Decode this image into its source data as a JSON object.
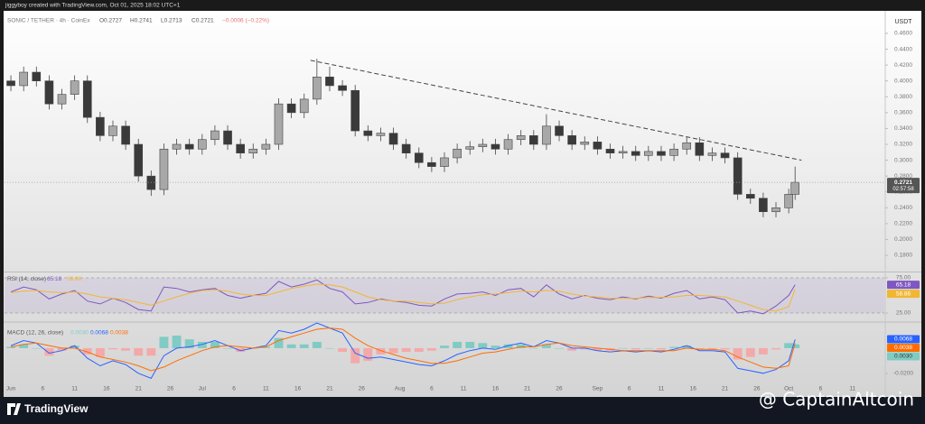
{
  "header": {
    "credit": "jiggyboy created with TradingView.com, Oct 01, 2025 18:02 UTC+1",
    "ohlc": [
      "O0.2727",
      "H0.2741",
      "L0.2713",
      "C0.2721",
      "−0.0006 (−0.22%)"
    ]
  },
  "footer": {
    "logo": "TradingView",
    "watermark": "@ CaptainAltcoin"
  },
  "chart_data": [
    {
      "type": "candlestick",
      "title": "SONIC / TETHER · 4h · CoinEx",
      "ylabel": "USDT",
      "countdown": "02:57:58",
      "x": [
        0,
        2,
        4,
        6,
        8,
        10,
        12,
        14,
        16,
        18,
        20,
        22,
        24,
        26,
        28,
        30,
        32,
        34,
        36,
        38,
        40,
        42,
        44,
        46,
        48,
        50,
        52,
        54,
        56,
        58,
        60,
        62,
        64,
        66,
        68,
        70,
        72,
        74,
        76,
        78,
        80,
        82,
        84,
        86,
        88,
        90,
        92,
        94,
        96,
        98,
        100,
        102,
        104,
        106,
        108,
        110,
        112,
        114,
        116,
        118,
        120,
        122,
        123
      ],
      "open": [
        0.4,
        0.394,
        0.411,
        0.4,
        0.371,
        0.383,
        0.4,
        0.354,
        0.331,
        0.343,
        0.32,
        0.28,
        0.263,
        0.314,
        0.32,
        0.314,
        0.326,
        0.337,
        0.32,
        0.309,
        0.314,
        0.32,
        0.371,
        0.36,
        0.377,
        0.405,
        0.394,
        0.388,
        0.337,
        0.331,
        0.334,
        0.32,
        0.309,
        0.297,
        0.292,
        0.303,
        0.314,
        0.317,
        0.32,
        0.314,
        0.326,
        0.331,
        0.32,
        0.343,
        0.331,
        0.32,
        0.323,
        0.314,
        0.309,
        0.311,
        0.306,
        0.311,
        0.306,
        0.314,
        0.322,
        0.306,
        0.309,
        0.303,
        0.257,
        0.252,
        0.235,
        0.24,
        0.257
      ],
      "high": [
        0.407,
        0.418,
        0.418,
        0.407,
        0.39,
        0.407,
        0.407,
        0.361,
        0.35,
        0.35,
        0.327,
        0.287,
        0.321,
        0.327,
        0.327,
        0.333,
        0.344,
        0.344,
        0.327,
        0.321,
        0.327,
        0.378,
        0.378,
        0.384,
        0.428,
        0.418,
        0.401,
        0.395,
        0.344,
        0.341,
        0.341,
        0.327,
        0.316,
        0.304,
        0.31,
        0.321,
        0.324,
        0.327,
        0.327,
        0.333,
        0.338,
        0.338,
        0.358,
        0.35,
        0.338,
        0.33,
        0.33,
        0.321,
        0.318,
        0.318,
        0.318,
        0.318,
        0.321,
        0.329,
        0.329,
        0.316,
        0.316,
        0.31,
        0.264,
        0.259,
        0.247,
        0.264,
        0.292
      ],
      "low": [
        0.387,
        0.387,
        0.393,
        0.364,
        0.364,
        0.376,
        0.347,
        0.324,
        0.324,
        0.313,
        0.273,
        0.255,
        0.256,
        0.307,
        0.307,
        0.307,
        0.319,
        0.313,
        0.302,
        0.302,
        0.307,
        0.313,
        0.353,
        0.353,
        0.37,
        0.387,
        0.381,
        0.33,
        0.324,
        0.324,
        0.313,
        0.302,
        0.29,
        0.285,
        0.285,
        0.296,
        0.307,
        0.31,
        0.307,
        0.307,
        0.319,
        0.313,
        0.313,
        0.324,
        0.313,
        0.313,
        0.307,
        0.302,
        0.302,
        0.299,
        0.299,
        0.299,
        0.299,
        0.307,
        0.299,
        0.299,
        0.296,
        0.25,
        0.245,
        0.228,
        0.228,
        0.233,
        0.25
      ],
      "close": [
        0.394,
        0.411,
        0.4,
        0.371,
        0.383,
        0.4,
        0.354,
        0.331,
        0.343,
        0.32,
        0.28,
        0.263,
        0.314,
        0.32,
        0.314,
        0.326,
        0.337,
        0.32,
        0.309,
        0.314,
        0.32,
        0.371,
        0.36,
        0.377,
        0.405,
        0.394,
        0.388,
        0.337,
        0.331,
        0.334,
        0.32,
        0.309,
        0.297,
        0.292,
        0.303,
        0.314,
        0.317,
        0.32,
        0.314,
        0.326,
        0.331,
        0.32,
        0.343,
        0.331,
        0.32,
        0.323,
        0.314,
        0.309,
        0.311,
        0.306,
        0.311,
        0.306,
        0.314,
        0.322,
        0.306,
        0.309,
        0.303,
        0.257,
        0.252,
        0.235,
        0.24,
        0.257,
        0.2721
      ],
      "up_color": "#a8a8a8",
      "down_color": "#3a3a3a",
      "trendline": {
        "x": [
          47,
          124
        ],
        "values": [
          0.426,
          0.3
        ]
      },
      "xlim": [
        -1,
        137
      ],
      "xticks": [
        {
          "value": 0,
          "label": "Jun"
        },
        {
          "value": 5,
          "label": "6"
        },
        {
          "value": 10,
          "label": "11"
        },
        {
          "value": 15,
          "label": "16"
        },
        {
          "value": 20,
          "label": "21"
        },
        {
          "value": 25,
          "label": "26"
        },
        {
          "value": 30,
          "label": "Jul"
        },
        {
          "value": 35,
          "label": "6"
        },
        {
          "value": 40,
          "label": "11"
        },
        {
          "value": 45,
          "label": "16"
        },
        {
          "value": 50,
          "label": "21"
        },
        {
          "value": 55,
          "label": "26"
        },
        {
          "value": 61,
          "label": "Aug"
        },
        {
          "value": 66,
          "label": "6"
        },
        {
          "value": 71,
          "label": "11"
        },
        {
          "value": 76,
          "label": "16"
        },
        {
          "value": 81,
          "label": "21"
        },
        {
          "value": 86,
          "label": "26"
        },
        {
          "value": 92,
          "label": "Sep"
        },
        {
          "value": 97,
          "label": "6"
        },
        {
          "value": 102,
          "label": "11"
        },
        {
          "value": 107,
          "label": "16"
        },
        {
          "value": 112,
          "label": "21"
        },
        {
          "value": 117,
          "label": "26"
        },
        {
          "value": 122,
          "label": "Oct"
        },
        {
          "value": 127,
          "label": "6"
        },
        {
          "value": 132,
          "label": "11"
        }
      ],
      "ylim": [
        0.16,
        0.48
      ],
      "yticks": [
        {
          "value": 0.18,
          "label": "0.1800"
        },
        {
          "value": 0.2,
          "label": "0.2000"
        },
        {
          "value": 0.22,
          "label": "0.2200"
        },
        {
          "value": 0.24,
          "label": "0.2400"
        },
        {
          "value": 0.26,
          "label": "0.2600"
        },
        {
          "value": 0.28,
          "label": "0.2800"
        },
        {
          "value": 0.3,
          "label": "0.3000"
        },
        {
          "value": 0.32,
          "label": "0.3200"
        },
        {
          "value": 0.34,
          "label": "0.3400"
        },
        {
          "value": 0.36,
          "label": "0.3600"
        },
        {
          "value": 0.38,
          "label": "0.3800"
        },
        {
          "value": 0.4,
          "label": "0.4000"
        },
        {
          "value": 0.42,
          "label": "0.4200"
        },
        {
          "value": 0.44,
          "label": "0.4400"
        },
        {
          "value": 0.46,
          "label": "0.4600"
        }
      ],
      "grid": false
    },
    {
      "type": "line",
      "title": "RSI (14, close)",
      "band": true,
      "ylim": [
        14,
        82
      ],
      "yticks": [
        {
          "value": 25,
          "label": "25.00"
        },
        {
          "value": 75,
          "label": "75.00"
        }
      ],
      "series": [
        {
          "color": "#7e57c2",
          "values": [
            55,
            62,
            58,
            45,
            52,
            57,
            42,
            38,
            46,
            40,
            30,
            28,
            62,
            60,
            55,
            58,
            60,
            50,
            46,
            50,
            53,
            70,
            62,
            66,
            72,
            60,
            55,
            38,
            40,
            45,
            42,
            40,
            36,
            35,
            45,
            52,
            53,
            55,
            50,
            58,
            60,
            48,
            65,
            52,
            45,
            50,
            46,
            44,
            48,
            45,
            49,
            46,
            53,
            57,
            45,
            48,
            44,
            25,
            28,
            24,
            35,
            50,
            65.18
          ]
        },
        {
          "color": "#f2b632",
          "values": [
            54,
            56,
            57,
            55,
            54,
            55,
            52,
            48,
            46,
            44,
            40,
            36,
            42,
            48,
            53,
            57,
            58,
            56,
            52,
            50,
            50,
            55,
            60,
            63,
            66,
            65,
            62,
            55,
            48,
            44,
            42,
            42,
            40,
            38,
            39,
            44,
            48,
            51,
            52,
            54,
            56,
            55,
            57,
            56,
            52,
            49,
            48,
            46,
            46,
            46,
            47,
            47,
            48,
            50,
            50,
            49,
            48,
            42,
            36,
            30,
            28,
            34,
            58.86
          ]
        }
      ]
    },
    {
      "type": "macd",
      "title": "MACD (12, 26, close)",
      "ylim": [
        -0.028,
        0.02
      ],
      "yticks": [
        {
          "value": -0.02,
          "label": "-0.0200"
        }
      ],
      "series": [
        {
          "type": "bar",
          "color": "#80cbc4",
          "negative_color": "#f4a9a9",
          "values": [
            0.001,
            0.003,
            0,
            -0.006,
            -0.002,
            0.002,
            -0.005,
            -0.007,
            -0.001,
            -0.002,
            -0.006,
            -0.006,
            0.009,
            0.01,
            0.007,
            0.005,
            0.005,
            0,
            -0.003,
            0,
            0.001,
            0.008,
            0.003,
            0.003,
            0.005,
            0,
            -0.003,
            -0.012,
            -0.01,
            -0.005,
            -0.004,
            -0.003,
            -0.003,
            -0.002,
            0.002,
            0.005,
            0.005,
            0.004,
            0.002,
            0.003,
            0.003,
            0,
            0.003,
            0,
            -0.002,
            -0.001,
            -0.002,
            -0.002,
            0,
            -0.001,
            0,
            -0.001,
            0.001,
            0.002,
            -0.001,
            -0.001,
            -0.001,
            -0.009,
            -0.007,
            -0.005,
            -0.001,
            0.004,
            0.003
          ],
          "value_labels": [
            null,
            null,
            null,
            null,
            null,
            null,
            null,
            null,
            null,
            null,
            null,
            null,
            null,
            null,
            null,
            null,
            null,
            null,
            null,
            null,
            null,
            null,
            null,
            null,
            null,
            null,
            null,
            null,
            null,
            null,
            null,
            null,
            null,
            null,
            null,
            null,
            null,
            null,
            null,
            null,
            null,
            null,
            null,
            null,
            null,
            null,
            null,
            null,
            null,
            null,
            null,
            null,
            null,
            null,
            null,
            null,
            null,
            null,
            null,
            null,
            null,
            null,
            "0.0030"
          ]
        },
        {
          "type": "line",
          "color": "#2962ff",
          "values": [
            0.002,
            0.006,
            0.004,
            -0.004,
            -0.002,
            0.002,
            -0.008,
            -0.014,
            -0.01,
            -0.013,
            -0.02,
            -0.024,
            -0.006,
            0.0,
            0.001,
            0.003,
            0.006,
            0.002,
            -0.002,
            0.0,
            0.002,
            0.014,
            0.012,
            0.015,
            0.02,
            0.016,
            0.012,
            -0.004,
            -0.008,
            -0.007,
            -0.009,
            -0.011,
            -0.013,
            -0.014,
            -0.01,
            -0.005,
            -0.002,
            0.0,
            -0.001,
            0.002,
            0.004,
            0.001,
            0.006,
            0.004,
            0.0,
            0.0,
            -0.002,
            -0.003,
            -0.002,
            -0.003,
            -0.002,
            -0.003,
            -0.001,
            0.002,
            -0.002,
            -0.002,
            -0.003,
            -0.016,
            -0.018,
            -0.02,
            -0.017,
            -0.01,
            0.0068
          ]
        },
        {
          "type": "line",
          "color": "#ff6d00",
          "values": [
            0.001,
            0.003,
            0.004,
            0.002,
            0.0,
            0.0,
            -0.003,
            -0.007,
            -0.009,
            -0.011,
            -0.014,
            -0.018,
            -0.015,
            -0.01,
            -0.006,
            -0.002,
            0.001,
            0.002,
            0.001,
            0.0,
            0.001,
            0.006,
            0.009,
            0.012,
            0.015,
            0.016,
            0.015,
            0.008,
            0.002,
            -0.002,
            -0.005,
            -0.008,
            -0.01,
            -0.012,
            -0.012,
            -0.01,
            -0.007,
            -0.004,
            -0.003,
            -0.001,
            0.001,
            0.001,
            0.003,
            0.004,
            0.002,
            0.001,
            0.0,
            -0.001,
            -0.002,
            -0.002,
            -0.002,
            -0.002,
            -0.002,
            0.0,
            -0.001,
            -0.001,
            -0.002,
            -0.007,
            -0.011,
            -0.015,
            -0.016,
            -0.014,
            0.0038
          ]
        }
      ]
    }
  ]
}
